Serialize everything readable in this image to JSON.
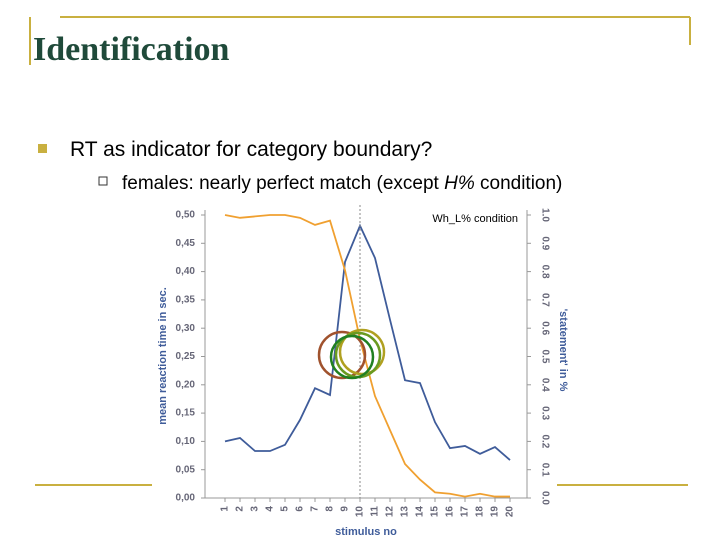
{
  "slide": {
    "title": "Identification",
    "bullets": [
      {
        "text": "RT as indicator for category boundary?",
        "sub": [
          "females: nearly perfect match (except ",
          "H%",
          " condition)"
        ]
      }
    ]
  },
  "chart_data": {
    "type": "line",
    "annotation": "Wh_L% condition",
    "x_label": "stimulus no",
    "y_label": "mean reaction time in sec.",
    "y2_label": "'statement' in %",
    "categories": [
      "1",
      "2",
      "3",
      "4",
      "5",
      "6",
      "7",
      "8",
      "9",
      "10",
      "11",
      "12",
      "13",
      "14",
      "15",
      "16",
      "17",
      "18",
      "19",
      "20"
    ],
    "series": [
      {
        "name": "mean reaction time",
        "color": "#3f5c9a",
        "values": [
          0.1,
          0.106,
          0.083,
          0.083,
          0.094,
          0.138,
          0.194,
          0.182,
          0.417,
          0.481,
          0.424,
          0.315,
          0.208,
          0.203,
          0.134,
          0.088,
          0.092,
          0.078,
          0.09,
          0.067
        ]
      },
      {
        "name": "statement",
        "color": "#f0a030",
        "axis": "y2",
        "values": [
          1.0,
          0.99,
          0.995,
          1.0,
          1.0,
          0.99,
          0.965,
          0.98,
          0.805,
          0.56,
          0.36,
          0.24,
          0.12,
          0.065,
          0.02,
          0.015,
          0.005,
          0.015,
          0.005,
          0.005
        ]
      }
    ],
    "ylim": [
      0,
      0.5
    ],
    "yticks": [
      {
        "value": 0,
        "label": "0,00"
      },
      {
        "value": 0.05,
        "label": "0,05"
      },
      {
        "value": 0.1,
        "label": "0,10"
      },
      {
        "value": 0.15,
        "label": "0,15"
      },
      {
        "value": 0.2,
        "label": "0,20"
      },
      {
        "value": 0.25,
        "label": "0,25"
      },
      {
        "value": 0.3,
        "label": "0,30"
      },
      {
        "value": 0.35,
        "label": "0,35"
      },
      {
        "value": 0.4,
        "label": "0,40"
      },
      {
        "value": 0.45,
        "label": "0,45"
      },
      {
        "value": 0.5,
        "label": "0,50"
      }
    ],
    "y2lim": [
      0,
      1
    ],
    "y2ticks": [
      {
        "value": 0,
        "label": "0.0"
      },
      {
        "value": 0.1,
        "label": "0.1"
      },
      {
        "value": 0.2,
        "label": "0.2"
      },
      {
        "value": 0.3,
        "label": "0.3"
      },
      {
        "value": 0.4,
        "label": "0.4"
      },
      {
        "value": 0.5,
        "label": "0.5"
      },
      {
        "value": 0.6,
        "label": "0.6"
      },
      {
        "value": 0.7,
        "label": "0.7"
      },
      {
        "value": 0.8,
        "label": "0.8"
      },
      {
        "value": 0.9,
        "label": "0.9"
      },
      {
        "value": 1,
        "label": "1.0"
      }
    ]
  }
}
